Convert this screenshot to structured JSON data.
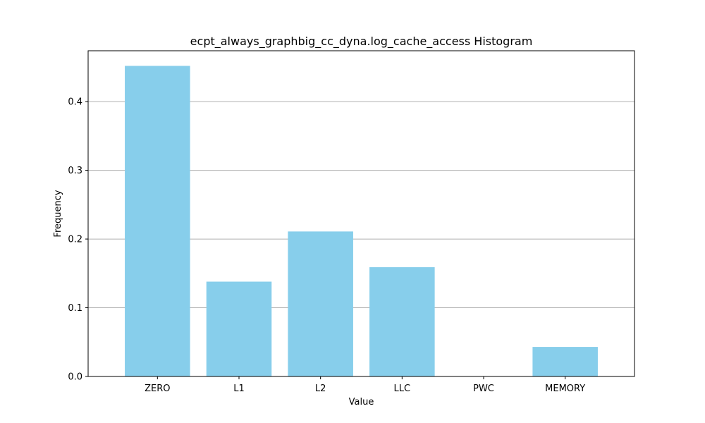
{
  "chart_data": {
    "type": "bar",
    "title": "ecpt_always_graphbig_cc_dyna.log_cache_access Histogram",
    "xlabel": "Value",
    "ylabel": "Frequency",
    "categories": [
      "ZERO",
      "L1",
      "L2",
      "LLC",
      "PWC",
      "MEMORY"
    ],
    "values": [
      0.452,
      0.138,
      0.211,
      0.159,
      0.0,
      0.043
    ],
    "ylim": [
      0,
      0.474
    ],
    "yticks": [
      0.0,
      0.1,
      0.2,
      0.3,
      0.4
    ],
    "ytick_labels": [
      "0.0",
      "0.1",
      "0.2",
      "0.3",
      "0.4"
    ],
    "grid": "y",
    "bar_color": "#87CEEB"
  }
}
